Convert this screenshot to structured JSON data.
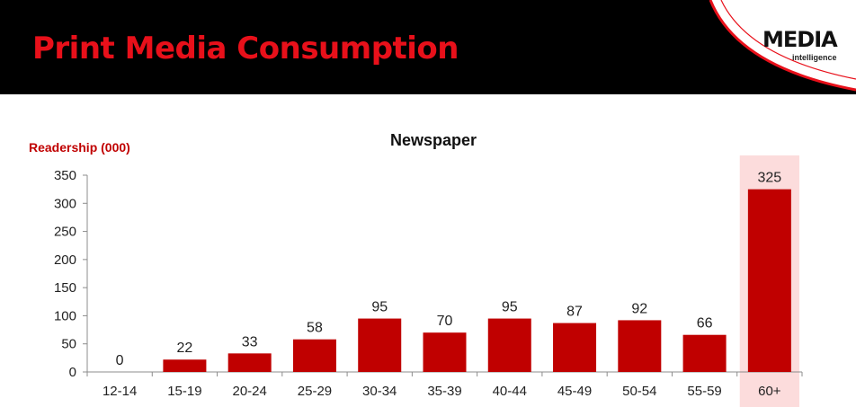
{
  "slide": {
    "title": "Print Media Consumption",
    "logo": {
      "main": "MEDIA",
      "sub": "intelligence"
    }
  },
  "colors": {
    "header_bg": "#000000",
    "title": "#e8101a",
    "bar": "#c00000",
    "highlight": "#fcdcdc",
    "ylabel": "#c00000"
  },
  "chart_data": {
    "type": "bar",
    "title": "Newspaper",
    "ylabel": "Readership (000)",
    "xlabel": "",
    "categories": [
      "12-14",
      "15-19",
      "20-24",
      "25-29",
      "30-34",
      "35-39",
      "40-44",
      "45-49",
      "50-54",
      "55-59",
      "60+"
    ],
    "values": [
      0,
      22,
      33,
      58,
      95,
      70,
      95,
      87,
      92,
      66,
      325
    ],
    "ylim": [
      0,
      350
    ],
    "yticks": [
      0,
      50,
      100,
      150,
      200,
      250,
      300,
      350
    ],
    "highlighted_category": "60+",
    "grid": false,
    "legend": "none"
  }
}
